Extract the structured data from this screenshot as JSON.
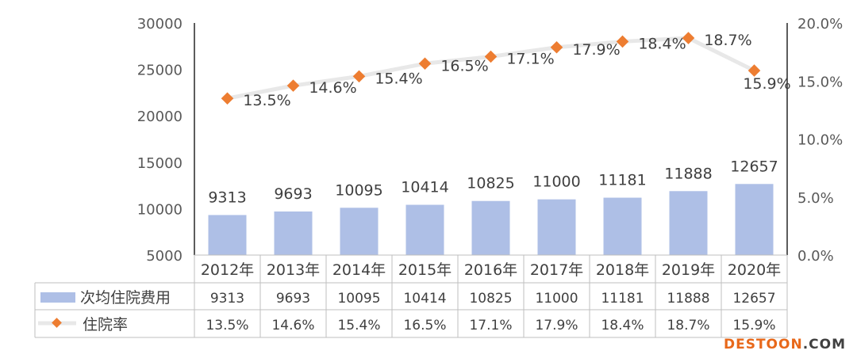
{
  "chart_data": {
    "type": "bar",
    "categories": [
      "2012年",
      "2013年",
      "2014年",
      "2015年",
      "2016年",
      "2017年",
      "2018年",
      "2019年",
      "2020年"
    ],
    "series": [
      {
        "name": "次均住院费用",
        "type": "bar",
        "axis": "left",
        "values": [
          9313,
          9693,
          10095,
          10414,
          10825,
          11000,
          11181,
          11888,
          12657
        ],
        "labels": [
          "9313",
          "9693",
          "10095",
          "10414",
          "10825",
          "11000",
          "11181",
          "11888",
          "12657"
        ]
      },
      {
        "name": "住院率",
        "type": "line",
        "axis": "right",
        "values": [
          13.5,
          14.6,
          15.4,
          16.5,
          17.1,
          17.9,
          18.4,
          18.7,
          15.9
        ],
        "labels": [
          "13.5%",
          "14.6%",
          "15.4%",
          "16.5%",
          "17.1%",
          "17.9%",
          "18.4%",
          "18.7%",
          "15.9%"
        ]
      }
    ],
    "y_left": {
      "min": 5000,
      "max": 30000,
      "ticks": [
        "30000",
        "25000",
        "20000",
        "15000",
        "10000",
        "5000"
      ]
    },
    "y_right": {
      "min": 0,
      "max": 20,
      "ticks": [
        "20.0%",
        "15.0%",
        "10.0%",
        "5.0%",
        "0.0%"
      ]
    },
    "data_table": true,
    "grid": false,
    "colors": {
      "bar": "#aebfe6",
      "line": "#e8e8e8",
      "marker": "#ed7d31",
      "axis": "#262626",
      "table_border": "#bfbfbf"
    }
  },
  "watermark": {
    "text": "DESTOON",
    "suffix": ".COM",
    "color": "#e8681a",
    "suffix_color": "#404040"
  }
}
